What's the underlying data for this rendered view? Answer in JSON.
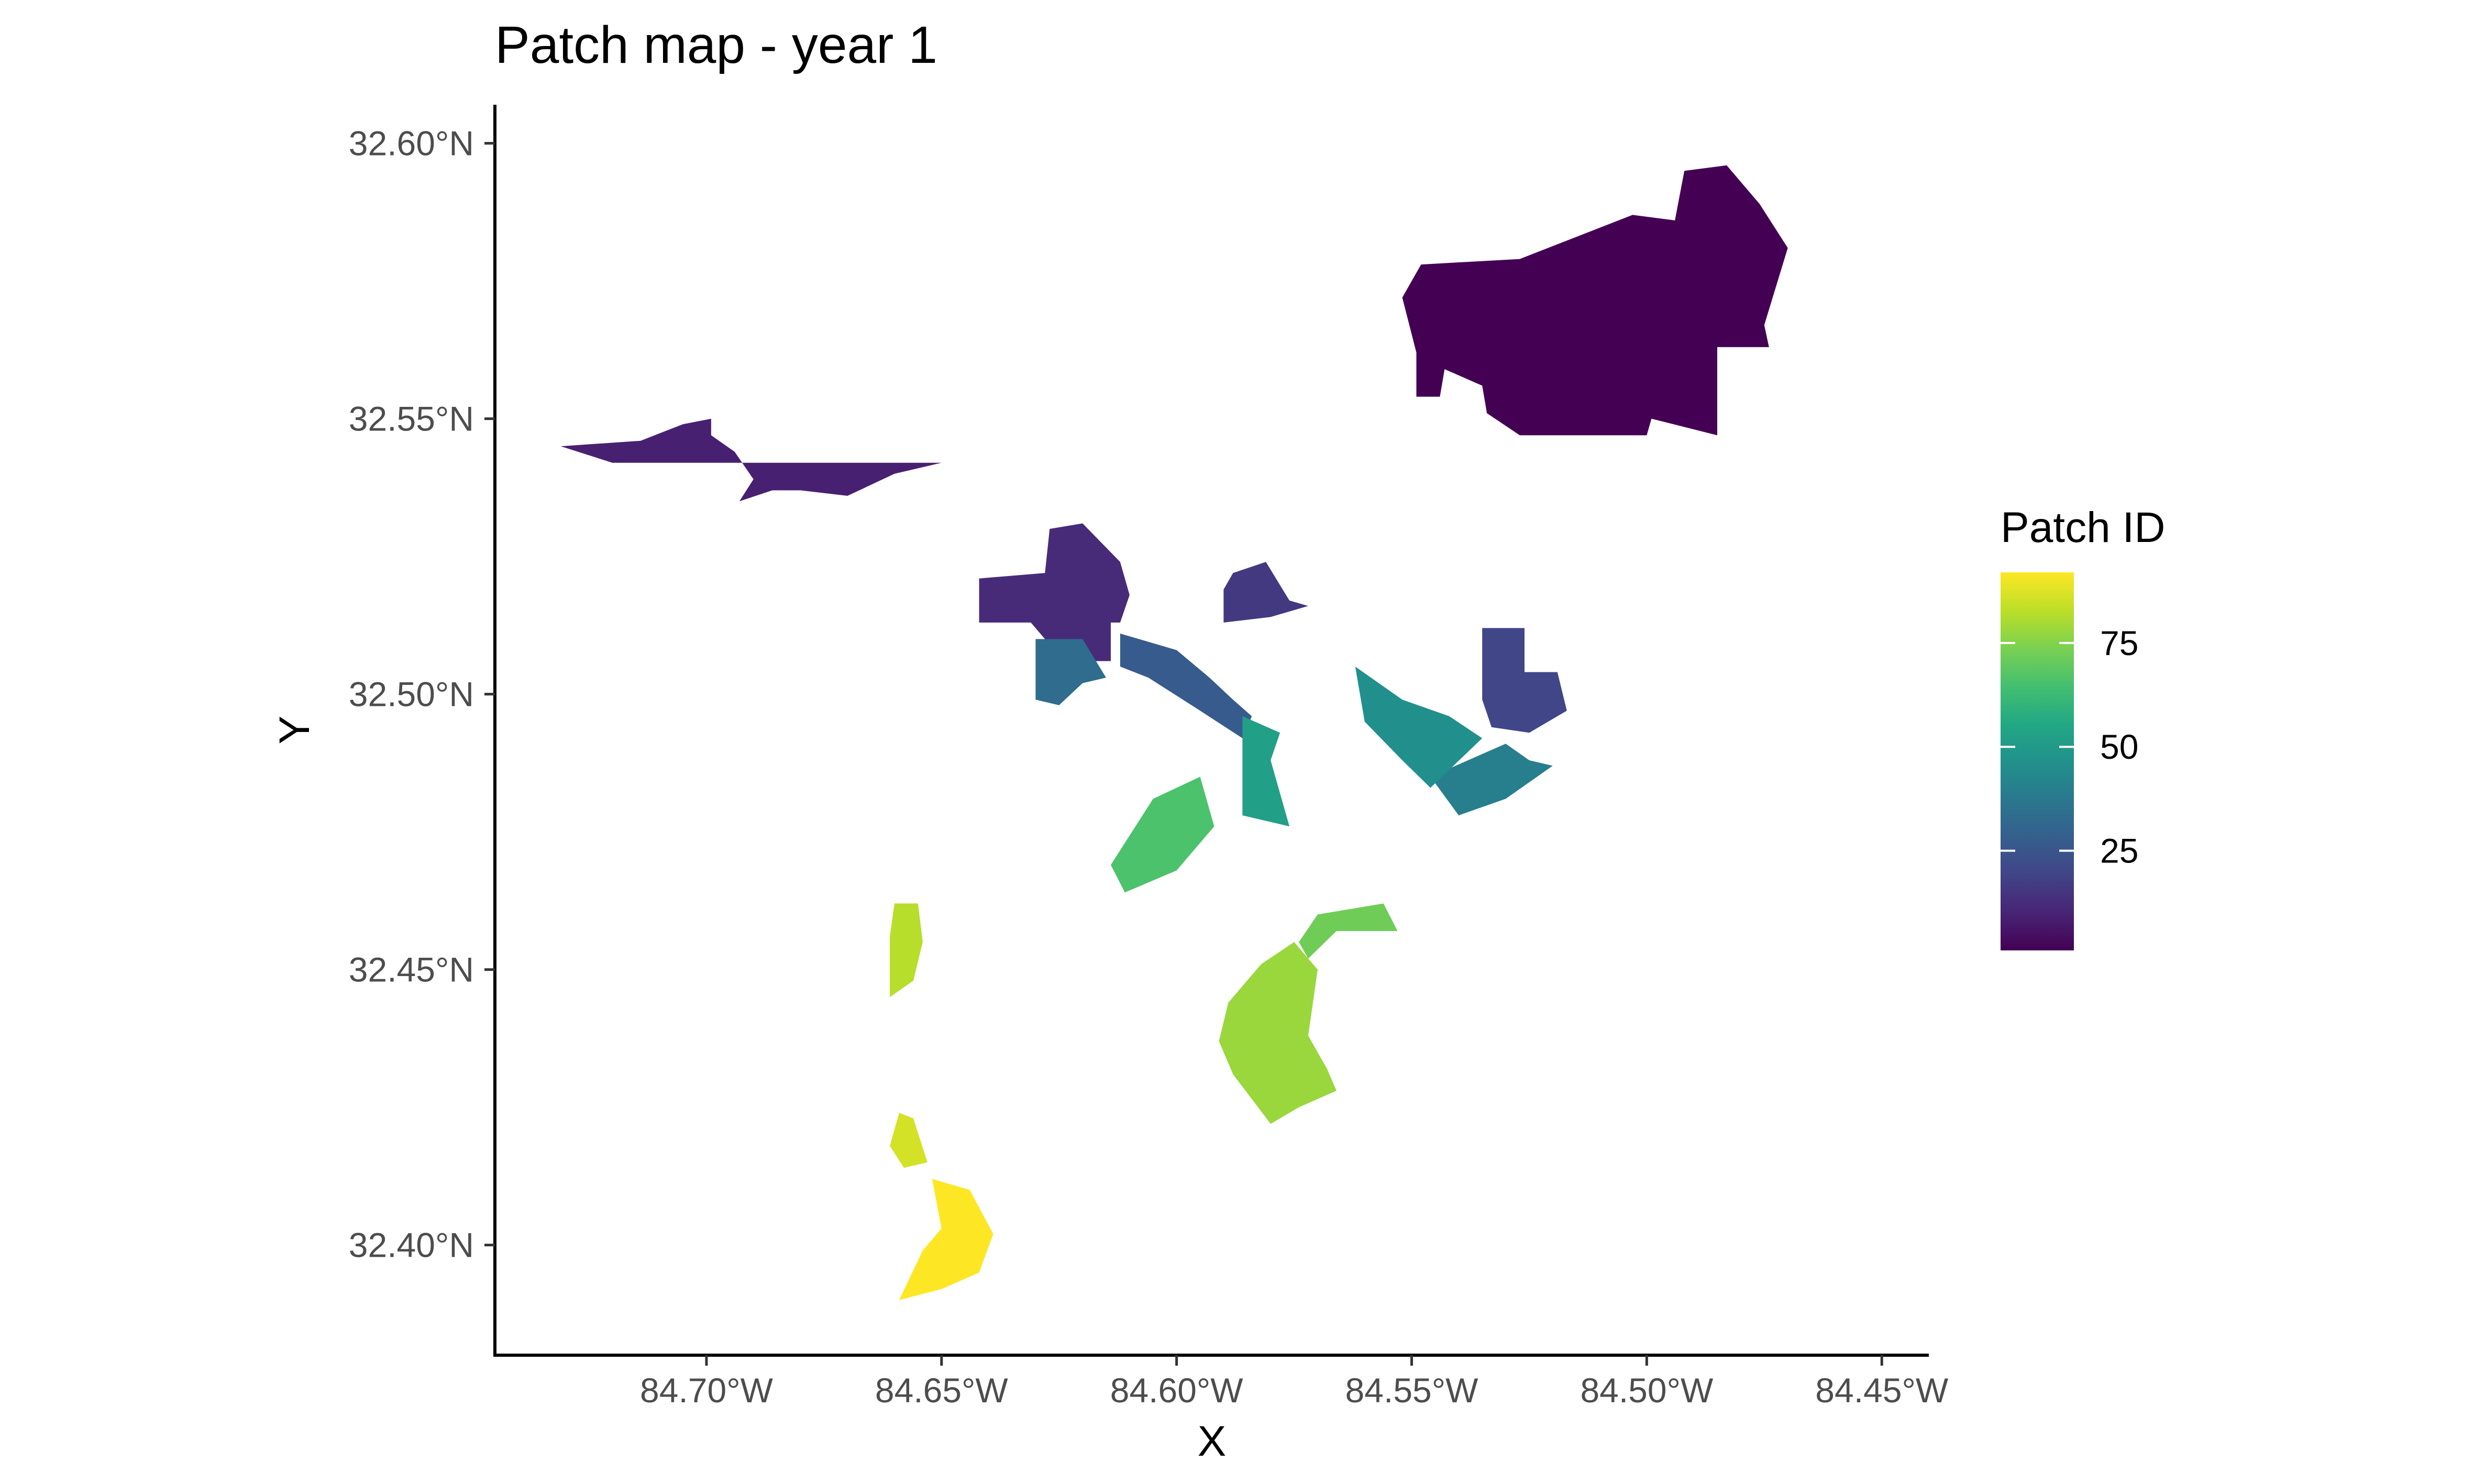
{
  "chart_data": {
    "type": "map",
    "title": "Patch map - year 1",
    "xlabel": "X",
    "ylabel": "Y",
    "xlim": [
      -84.745,
      -84.44
    ],
    "ylim": [
      32.38,
      32.607
    ],
    "x_ticks": [
      {
        "value": -84.7,
        "label": "84.70°W"
      },
      {
        "value": -84.65,
        "label": "84.65°W"
      },
      {
        "value": -84.6,
        "label": "84.60°W"
      },
      {
        "value": -84.55,
        "label": "84.55°W"
      },
      {
        "value": -84.5,
        "label": "84.50°W"
      },
      {
        "value": -84.45,
        "label": "84.45°W"
      }
    ],
    "y_ticks": [
      {
        "value": 32.6,
        "label": "32.60°N"
      },
      {
        "value": 32.55,
        "label": "32.55°N"
      },
      {
        "value": 32.5,
        "label": "32.50°N"
      },
      {
        "value": 32.45,
        "label": "32.45°N"
      },
      {
        "value": 32.4,
        "label": "32.40°N"
      }
    ],
    "legend": {
      "title": "Patch ID",
      "placement": "right",
      "colorscale": "viridis",
      "range": [
        1,
        92
      ],
      "breaks": [
        {
          "value": 25,
          "label": "25"
        },
        {
          "value": 50,
          "label": "50"
        },
        {
          "value": 75,
          "label": "75"
        }
      ]
    },
    "patches": [
      {
        "id": 1,
        "polygon": [
          [
            -84.548,
            32.578
          ],
          [
            -84.527,
            32.579
          ],
          [
            -84.503,
            32.587
          ],
          [
            -84.494,
            32.586
          ],
          [
            -84.492,
            32.595
          ],
          [
            -84.483,
            32.596
          ],
          [
            -84.476,
            32.589
          ],
          [
            -84.47,
            32.581
          ],
          [
            -84.475,
            32.567
          ],
          [
            -84.474,
            32.563
          ],
          [
            -84.485,
            32.563
          ],
          [
            -84.485,
            32.547
          ],
          [
            -84.499,
            32.55
          ],
          [
            -84.5,
            32.547
          ],
          [
            -84.527,
            32.547
          ],
          [
            -84.534,
            32.551
          ],
          [
            -84.535,
            32.556
          ],
          [
            -84.543,
            32.559
          ],
          [
            -84.544,
            32.554
          ],
          [
            -84.549,
            32.554
          ],
          [
            -84.549,
            32.562
          ],
          [
            -84.552,
            32.572
          ]
        ]
      },
      {
        "id": 9,
        "polygon": [
          [
            -84.731,
            32.545
          ],
          [
            -84.714,
            32.546
          ],
          [
            -84.705,
            32.549
          ],
          [
            -84.699,
            32.55
          ],
          [
            -84.699,
            32.547
          ],
          [
            -84.694,
            32.544
          ],
          [
            -84.69,
            32.539
          ],
          [
            -84.693,
            32.535
          ],
          [
            -84.686,
            32.537
          ],
          [
            -84.68,
            32.537
          ],
          [
            -84.67,
            32.536
          ],
          [
            -84.66,
            32.54
          ],
          [
            -84.65,
            32.542
          ],
          [
            -84.72,
            32.542
          ]
        ]
      },
      {
        "id": 12,
        "polygon": [
          [
            -84.628,
            32.522
          ],
          [
            -84.627,
            32.53
          ],
          [
            -84.62,
            32.531
          ],
          [
            -84.612,
            32.524
          ],
          [
            -84.61,
            32.518
          ],
          [
            -84.612,
            32.513
          ],
          [
            -84.614,
            32.513
          ],
          [
            -84.614,
            32.506
          ],
          [
            -84.624,
            32.506
          ],
          [
            -84.631,
            32.513
          ],
          [
            -84.642,
            32.513
          ],
          [
            -84.642,
            32.521
          ]
        ]
      },
      {
        "id": 16,
        "polygon": [
          [
            -84.588,
            32.522
          ],
          [
            -84.581,
            32.524
          ],
          [
            -84.576,
            32.517
          ],
          [
            -84.572,
            32.516
          ],
          [
            -84.58,
            32.514
          ],
          [
            -84.59,
            32.513
          ],
          [
            -84.59,
            32.519
          ]
        ]
      },
      {
        "id": 20,
        "polygon": [
          [
            -84.535,
            32.512
          ],
          [
            -84.526,
            32.512
          ],
          [
            -84.526,
            32.504
          ],
          [
            -84.519,
            32.504
          ],
          [
            -84.517,
            32.497
          ],
          [
            -84.525,
            32.493
          ],
          [
            -84.533,
            32.494
          ],
          [
            -84.535,
            32.499
          ]
        ]
      },
      {
        "id": 27,
        "polygon": [
          [
            -84.612,
            32.511
          ],
          [
            -84.6,
            32.508
          ],
          [
            -84.593,
            32.503
          ],
          [
            -84.588,
            32.499
          ],
          [
            -84.584,
            32.496
          ],
          [
            -84.586,
            32.492
          ],
          [
            -84.595,
            32.497
          ],
          [
            -84.606,
            32.503
          ],
          [
            -84.612,
            32.505
          ]
        ]
      },
      {
        "id": 33,
        "polygon": [
          [
            -84.63,
            32.51
          ],
          [
            -84.62,
            32.51
          ],
          [
            -84.615,
            32.503
          ],
          [
            -84.62,
            32.502
          ],
          [
            -84.625,
            32.498
          ],
          [
            -84.63,
            32.499
          ]
        ]
      },
      {
        "id": 40,
        "polygon": [
          [
            -84.53,
            32.491
          ],
          [
            -84.525,
            32.488
          ],
          [
            -84.52,
            32.487
          ],
          [
            -84.53,
            32.481
          ],
          [
            -84.54,
            32.478
          ],
          [
            -84.546,
            32.485
          ]
        ]
      },
      {
        "id": 46,
        "polygon": [
          [
            -84.562,
            32.505
          ],
          [
            -84.552,
            32.499
          ],
          [
            -84.542,
            32.496
          ],
          [
            -84.535,
            32.492
          ],
          [
            -84.546,
            32.483
          ],
          [
            -84.552,
            32.488
          ],
          [
            -84.56,
            32.495
          ]
        ]
      },
      {
        "id": 52,
        "polygon": [
          [
            -84.586,
            32.496
          ],
          [
            -84.578,
            32.493
          ],
          [
            -84.58,
            32.488
          ],
          [
            -84.576,
            32.476
          ],
          [
            -84.586,
            32.478
          ]
        ]
      },
      {
        "id": 66,
        "polygon": [
          [
            -84.605,
            32.481
          ],
          [
            -84.595,
            32.485
          ],
          [
            -84.592,
            32.476
          ],
          [
            -84.6,
            32.468
          ],
          [
            -84.611,
            32.464
          ],
          [
            -84.614,
            32.469
          ]
        ]
      },
      {
        "id": 72,
        "polygon": [
          [
            -84.57,
            32.46
          ],
          [
            -84.556,
            32.462
          ],
          [
            -84.553,
            32.457
          ],
          [
            -84.566,
            32.457
          ],
          [
            -84.572,
            32.452
          ],
          [
            -84.574,
            32.455
          ]
        ]
      },
      {
        "id": 78,
        "polygon": [
          [
            -84.575,
            32.455
          ],
          [
            -84.57,
            32.45
          ],
          [
            -84.572,
            32.438
          ],
          [
            -84.568,
            32.432
          ],
          [
            -84.566,
            32.428
          ],
          [
            -84.574,
            32.425
          ],
          [
            -84.58,
            32.422
          ],
          [
            -84.588,
            32.431
          ],
          [
            -84.591,
            32.437
          ],
          [
            -84.589,
            32.444
          ],
          [
            -84.582,
            32.451
          ]
        ]
      },
      {
        "id": 82,
        "polygon": [
          [
            -84.66,
            32.462
          ],
          [
            -84.655,
            32.462
          ],
          [
            -84.654,
            32.455
          ],
          [
            -84.656,
            32.448
          ],
          [
            -84.661,
            32.445
          ],
          [
            -84.661,
            32.456
          ]
        ]
      },
      {
        "id": 86,
        "polygon": [
          [
            -84.659,
            32.424
          ],
          [
            -84.656,
            32.423
          ],
          [
            -84.653,
            32.415
          ],
          [
            -84.658,
            32.414
          ],
          [
            -84.661,
            32.418
          ]
        ]
      },
      {
        "id": 92,
        "polygon": [
          [
            -84.652,
            32.412
          ],
          [
            -84.644,
            32.41
          ],
          [
            -84.639,
            32.402
          ],
          [
            -84.642,
            32.395
          ],
          [
            -84.65,
            32.392
          ],
          [
            -84.659,
            32.39
          ],
          [
            -84.654,
            32.399
          ],
          [
            -84.65,
            32.403
          ]
        ]
      }
    ]
  }
}
